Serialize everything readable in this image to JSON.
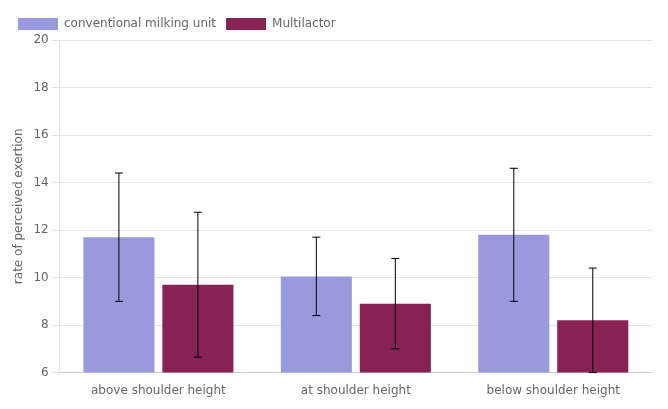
{
  "chart_data": {
    "type": "bar",
    "categories": [
      "above shoulder height",
      "at shoulder height",
      "below shoulder height"
    ],
    "series": [
      {
        "name": "conventional milking unit",
        "color": "#9999DD",
        "values": [
          11.7,
          10.05,
          11.8
        ],
        "errors": [
          2.7,
          1.65,
          2.8
        ]
      },
      {
        "name": "Multilactor",
        "color": "#882255",
        "values": [
          9.7,
          8.9,
          8.2
        ],
        "errors": [
          3.05,
          1.9,
          2.2
        ]
      }
    ],
    "ylabel": "rate of perceived exertion",
    "ylim": [
      6,
      20
    ],
    "yticks": [
      6,
      8,
      10,
      12,
      14,
      16,
      18,
      20
    ],
    "grid": true,
    "legend": "upper left"
  }
}
